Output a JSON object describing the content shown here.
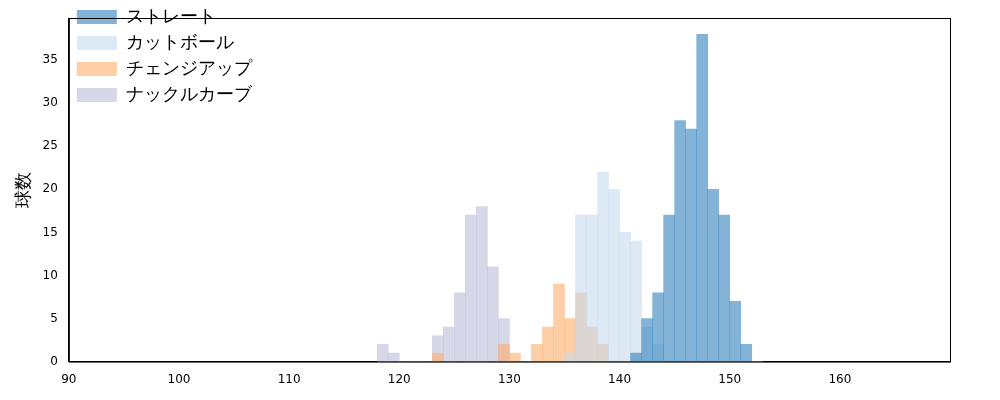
{
  "chart_data": {
    "type": "histogram",
    "y_label": "球数",
    "bins": [
      118,
      119,
      120,
      121,
      122,
      123,
      124,
      125,
      126,
      127,
      128,
      129,
      130,
      131,
      132,
      133,
      134,
      135,
      136,
      137,
      138,
      139,
      140,
      141,
      142,
      143,
      144,
      145,
      146,
      147,
      148,
      149,
      150,
      151,
      152,
      153
    ],
    "series": [
      {
        "name": "ストレート",
        "color": "#3182bd",
        "values": [
          0,
          0,
          0,
          0,
          0,
          0,
          0,
          0,
          0,
          0,
          0,
          0,
          0,
          0,
          0,
          0,
          0,
          0,
          0,
          0,
          0,
          0,
          0,
          1,
          5,
          8,
          17,
          28,
          27,
          38,
          20,
          17,
          7,
          2,
          0
        ]
      },
      {
        "name": "カットボール",
        "color": "#c6dbef",
        "values": [
          0,
          0,
          0,
          0,
          0,
          0,
          0,
          0,
          0,
          0,
          0,
          0,
          0,
          0,
          0,
          0,
          0,
          1,
          17,
          17,
          22,
          20,
          15,
          14,
          4,
          2,
          0,
          0,
          0,
          0,
          0,
          0,
          0,
          0,
          0
        ]
      },
      {
        "name": "チェンジアップ",
        "color": "#fdae6b",
        "values": [
          0,
          0,
          0,
          0,
          0,
          1,
          0,
          0,
          0,
          0,
          0,
          2,
          1,
          0,
          2,
          4,
          9,
          5,
          8,
          4,
          2,
          0,
          0,
          0,
          0,
          0,
          0,
          0,
          0,
          0,
          0,
          0,
          0,
          0,
          0
        ]
      },
      {
        "name": "ナックルカーブ",
        "color": "#bcbddc",
        "values": [
          2,
          1,
          0,
          0,
          0,
          3,
          4,
          8,
          17,
          18,
          11,
          5,
          0,
          0,
          0,
          0,
          0,
          0,
          0,
          0,
          0,
          0,
          0,
          0,
          0,
          0,
          0,
          0,
          0,
          0,
          0,
          0,
          0,
          0,
          0
        ]
      }
    ],
    "xlim": [
      90,
      170
    ],
    "xticks": [
      90,
      100,
      110,
      120,
      130,
      140,
      150,
      160
    ],
    "ylim": [
      0,
      39.9
    ],
    "yticks": [
      0,
      5,
      10,
      15,
      20,
      25,
      30,
      35
    ],
    "grid": false,
    "legend": "upper left"
  }
}
